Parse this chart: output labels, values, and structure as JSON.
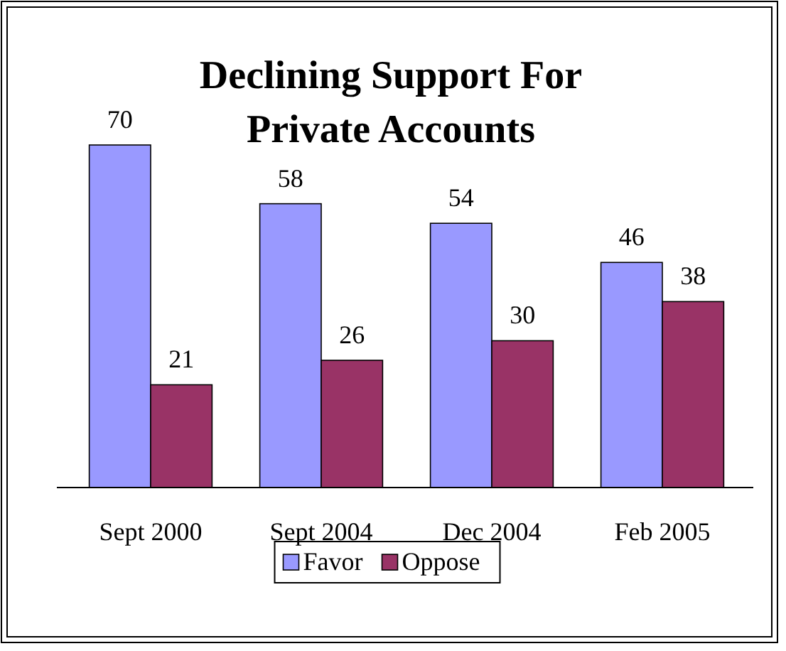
{
  "chart_data": {
    "type": "bar",
    "title": "Declining Support For Private Accounts",
    "categories": [
      "Sept 2000",
      "Sept 2004",
      "Dec 2004",
      "Feb 2005"
    ],
    "series": [
      {
        "name": "Favor",
        "color": "#9999ff",
        "values": [
          70,
          58,
          54,
          46
        ]
      },
      {
        "name": "Oppose",
        "color": "#993366",
        "values": [
          21,
          26,
          30,
          38
        ]
      }
    ],
    "data_labels": true,
    "legend": "bottom"
  }
}
